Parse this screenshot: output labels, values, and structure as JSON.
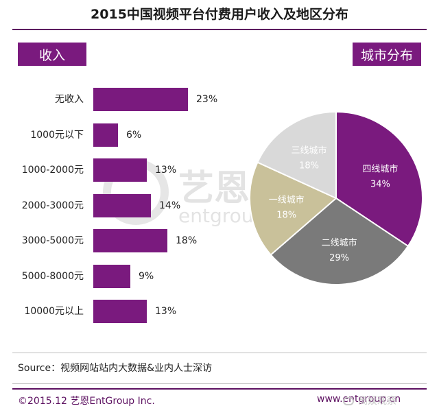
{
  "title": "2015中国视频平台付费用户收入及地区分布",
  "income_tag": "收入",
  "city_tag": "城市分布",
  "chart_data": [
    {
      "type": "bar",
      "orientation": "horizontal",
      "title": "收入",
      "categories": [
        "无收入",
        "1000元以下",
        "1000-2000元",
        "2000-3000元",
        "3000-5000元",
        "5000-8000元",
        "10000元以上"
      ],
      "values": [
        23,
        6,
        13,
        14,
        18,
        9,
        13
      ],
      "value_labels": [
        "23%",
        "6%",
        "13%",
        "14%",
        "18%",
        "9%",
        "13%"
      ],
      "unit": "%",
      "color": "#7a1a7e"
    },
    {
      "type": "pie",
      "title": "城市分布",
      "start_angle_deg": 0,
      "direction": "clockwise",
      "slices": [
        {
          "label": "四线城市",
          "value": 34,
          "value_label": "34%",
          "color": "#7a1a7e",
          "text_color": "#ffffff"
        },
        {
          "label": "二线城市",
          "value": 29,
          "value_label": "29%",
          "color": "#7a7a7a",
          "text_color": "#ffffff"
        },
        {
          "label": "一线城市",
          "value": 18,
          "value_label": "18%",
          "color": "#c9c19a",
          "text_color": "#ffffff"
        },
        {
          "label": "三线城市",
          "value": 18,
          "value_label": "18%",
          "color": "#d9d9d9",
          "text_color": "#ffffff"
        }
      ]
    }
  ],
  "watermark": {
    "cn": "艺恩",
    "en": "entgroup"
  },
  "source": "Source：视频网站站内大数据&业内人士深访",
  "footer_left": "©2015.12  艺恩EntGroup Inc.",
  "footer_right": "www.entgroup.cn",
  "footer_overlay": "高娱观察"
}
